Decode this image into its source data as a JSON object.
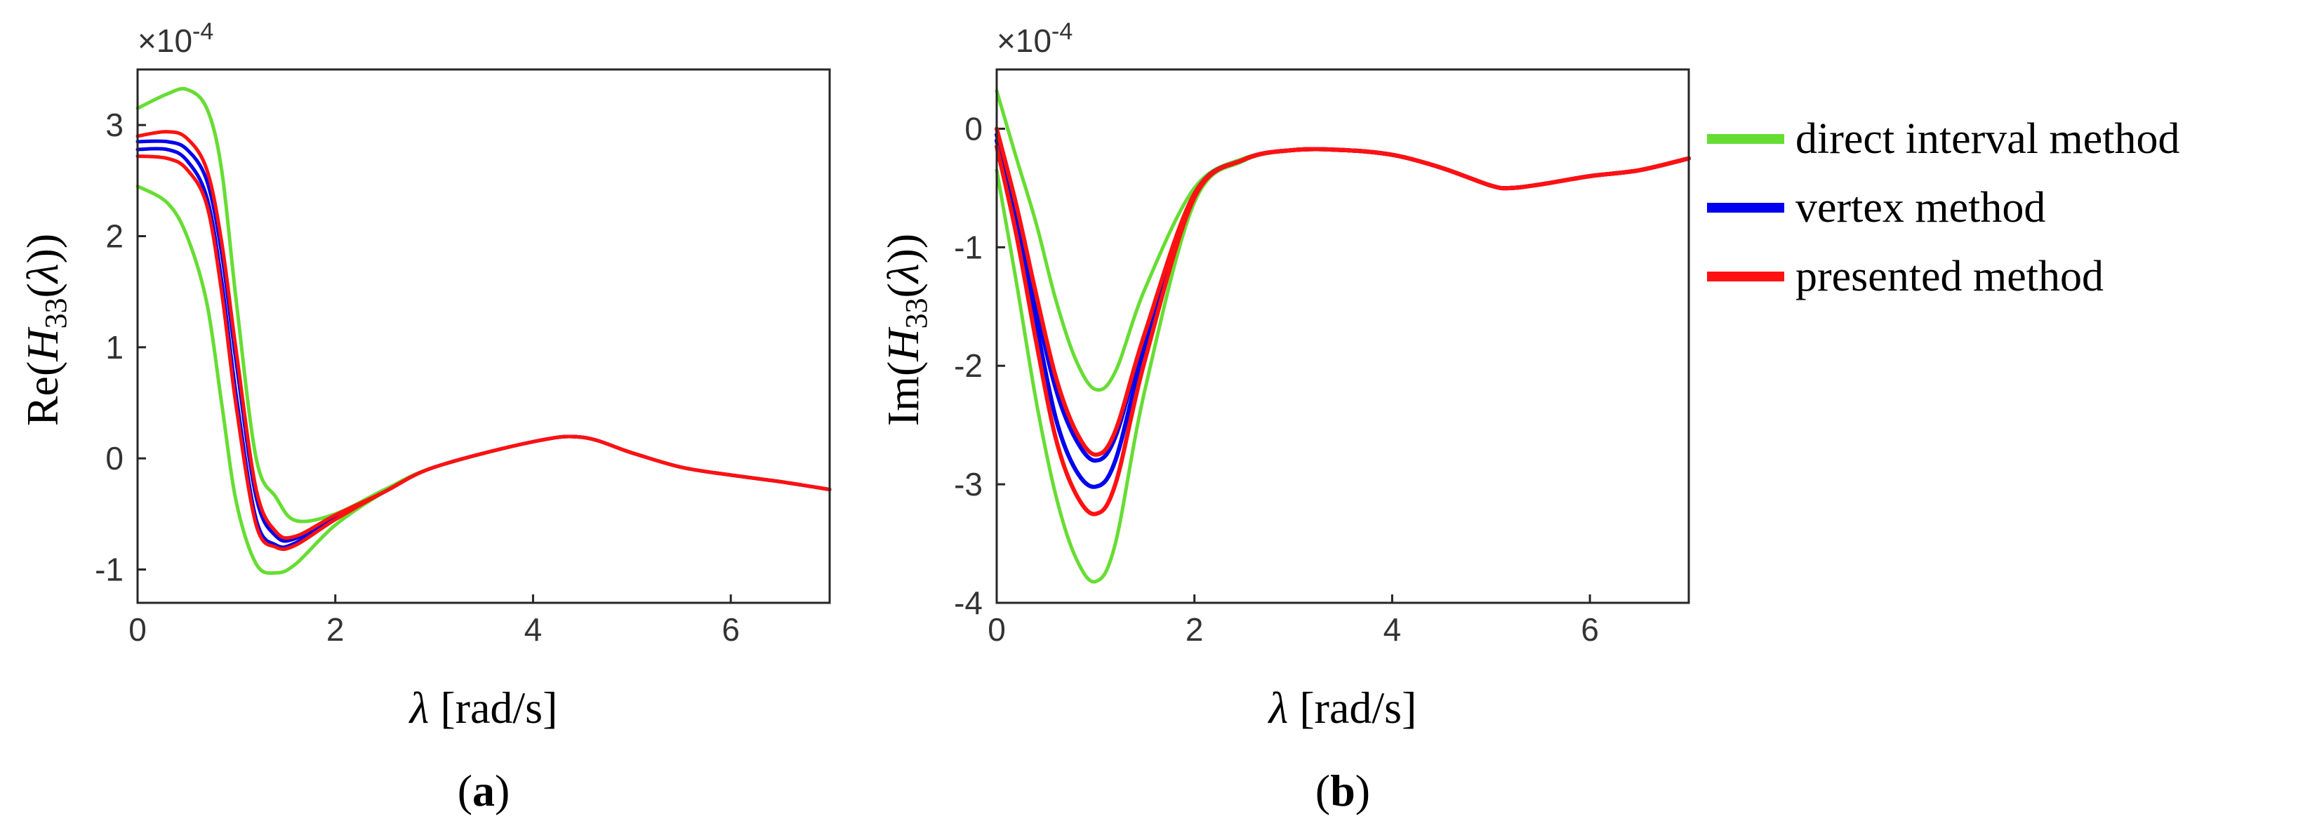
{
  "chart_data": [
    {
      "id": "a",
      "type": "line",
      "panel_label": "a",
      "scale_factor": "×10",
      "scale_exponent": "-4",
      "ylabel": {
        "func": "Re(",
        "var": "H",
        "sub": "33",
        "open": "(",
        "lam": "λ",
        "close": "))"
      },
      "xlabel": {
        "lam": "λ",
        "unit": " [rad/s]"
      },
      "xlim": [
        0,
        7
      ],
      "ylim": [
        -1.3,
        3.5
      ],
      "xticks": [
        0,
        2,
        4,
        6
      ],
      "xtick_labels": [
        "0",
        "2",
        "4",
        "6"
      ],
      "yticks": [
        -1,
        0,
        1,
        2,
        3
      ],
      "ytick_labels": [
        "-1",
        "0",
        "1",
        "2",
        "3"
      ],
      "series": [
        {
          "name": "direct interval method (upper)",
          "color": "#66dd33",
          "width": 5,
          "x": [
            0,
            0.3,
            0.5,
            0.7,
            0.85,
            1.0,
            1.2,
            1.4,
            1.6,
            2.0,
            2.5,
            3.0,
            4.0,
            4.5,
            5.0,
            5.5,
            6.0,
            6.5,
            7.0
          ],
          "y": [
            3.15,
            3.28,
            3.32,
            3.15,
            2.6,
            1.4,
            0.0,
            -0.35,
            -0.56,
            -0.5,
            -0.28,
            -0.08,
            0.15,
            0.19,
            0.05,
            -0.08,
            -0.15,
            -0.21,
            -0.28
          ]
        },
        {
          "name": "direct interval method (lower)",
          "color": "#66dd33",
          "width": 5,
          "x": [
            0,
            0.3,
            0.5,
            0.7,
            0.85,
            1.0,
            1.2,
            1.4,
            1.6,
            2.0,
            2.5,
            3.0,
            4.0,
            4.5,
            5.0,
            5.5,
            6.0,
            6.5,
            7.0
          ],
          "y": [
            2.45,
            2.3,
            2.0,
            1.4,
            0.5,
            -0.4,
            -0.95,
            -1.03,
            -0.95,
            -0.6,
            -0.3,
            -0.08,
            0.15,
            0.19,
            0.05,
            -0.08,
            -0.15,
            -0.21,
            -0.28
          ]
        },
        {
          "name": "vertex method (upper)",
          "color": "#0000ee",
          "width": 5,
          "x": [
            0,
            0.3,
            0.5,
            0.7,
            0.85,
            1.0,
            1.2,
            1.4,
            1.6,
            2.0,
            2.5,
            3.0,
            4.0,
            4.5,
            5.0,
            5.5,
            6.0,
            6.5,
            7.0
          ],
          "y": [
            2.85,
            2.85,
            2.78,
            2.5,
            1.85,
            0.85,
            -0.35,
            -0.7,
            -0.72,
            -0.52,
            -0.3,
            -0.08,
            0.15,
            0.19,
            0.05,
            -0.08,
            -0.15,
            -0.21,
            -0.28
          ]
        },
        {
          "name": "vertex method (lower)",
          "color": "#0000ee",
          "width": 5,
          "x": [
            0,
            0.3,
            0.5,
            0.7,
            0.85,
            1.0,
            1.2,
            1.4,
            1.6,
            2.0,
            2.5,
            3.0,
            4.0,
            4.5,
            5.0,
            5.5,
            6.0,
            6.5,
            7.0
          ],
          "y": [
            2.78,
            2.78,
            2.68,
            2.35,
            1.6,
            0.55,
            -0.55,
            -0.78,
            -0.76,
            -0.54,
            -0.3,
            -0.08,
            0.15,
            0.19,
            0.05,
            -0.08,
            -0.15,
            -0.21,
            -0.28
          ]
        },
        {
          "name": "presented method (upper)",
          "color": "#ff1111",
          "width": 5,
          "x": [
            0,
            0.3,
            0.5,
            0.7,
            0.85,
            1.0,
            1.2,
            1.4,
            1.6,
            2.0,
            2.5,
            3.0,
            4.0,
            4.5,
            5.0,
            5.5,
            6.0,
            6.5,
            7.0
          ],
          "y": [
            2.9,
            2.94,
            2.88,
            2.6,
            1.95,
            0.95,
            -0.28,
            -0.66,
            -0.7,
            -0.51,
            -0.3,
            -0.08,
            0.15,
            0.19,
            0.05,
            -0.08,
            -0.15,
            -0.21,
            -0.28
          ]
        },
        {
          "name": "presented method (lower)",
          "color": "#ff1111",
          "width": 5,
          "x": [
            0,
            0.3,
            0.5,
            0.7,
            0.85,
            1.0,
            1.2,
            1.4,
            1.6,
            2.0,
            2.5,
            3.0,
            4.0,
            4.5,
            5.0,
            5.5,
            6.0,
            6.5,
            7.0
          ],
          "y": [
            2.72,
            2.7,
            2.6,
            2.28,
            1.5,
            0.45,
            -0.6,
            -0.8,
            -0.78,
            -0.55,
            -0.3,
            -0.08,
            0.15,
            0.19,
            0.05,
            -0.08,
            -0.15,
            -0.21,
            -0.28
          ]
        }
      ]
    },
    {
      "id": "b",
      "type": "line",
      "panel_label": "b",
      "scale_factor": "×10",
      "scale_exponent": "-4",
      "ylabel": {
        "func": "Im(",
        "var": "H",
        "sub": "33",
        "open": "(",
        "lam": "λ",
        "close": "))"
      },
      "xlabel": {
        "lam": "λ",
        "unit": " [rad/s]"
      },
      "xlim": [
        0,
        7
      ],
      "ylim": [
        -4,
        0.5
      ],
      "xticks": [
        0,
        2,
        4,
        6
      ],
      "xtick_labels": [
        "0",
        "2",
        "4",
        "6"
      ],
      "yticks": [
        -4,
        -3,
        -2,
        -1,
        0
      ],
      "ytick_labels": [
        "-4",
        "-3",
        "-2",
        "-1",
        "0"
      ],
      "series": [
        {
          "name": "direct interval method (upper)",
          "color": "#66dd33",
          "width": 5,
          "x": [
            0,
            0.2,
            0.4,
            0.6,
            0.8,
            1.0,
            1.2,
            1.5,
            2.0,
            2.5,
            3.0,
            3.5,
            4.0,
            4.5,
            5.0,
            5.2,
            5.5,
            6.0,
            6.5,
            7.0
          ],
          "y": [
            0.32,
            -0.25,
            -0.8,
            -1.45,
            -1.95,
            -2.2,
            -2.05,
            -1.35,
            -0.5,
            -0.25,
            -0.18,
            -0.18,
            -0.22,
            -0.33,
            -0.48,
            -0.5,
            -0.47,
            -0.4,
            -0.35,
            -0.25
          ]
        },
        {
          "name": "direct interval method (lower)",
          "color": "#66dd33",
          "width": 5,
          "x": [
            0,
            0.2,
            0.4,
            0.6,
            0.8,
            1.0,
            1.2,
            1.5,
            2.0,
            2.5,
            3.0,
            3.5,
            4.0,
            4.5,
            5.0,
            5.2,
            5.5,
            6.0,
            6.5,
            7.0
          ],
          "y": [
            -0.35,
            -1.3,
            -2.3,
            -3.1,
            -3.62,
            -3.82,
            -3.5,
            -2.2,
            -0.62,
            -0.27,
            -0.18,
            -0.18,
            -0.22,
            -0.33,
            -0.48,
            -0.5,
            -0.47,
            -0.4,
            -0.35,
            -0.25
          ]
        },
        {
          "name": "vertex method (upper)",
          "color": "#0000ee",
          "width": 6,
          "x": [
            0,
            0.2,
            0.4,
            0.6,
            0.8,
            1.0,
            1.2,
            1.5,
            2.0,
            2.5,
            3.0,
            3.5,
            4.0,
            4.5,
            5.0,
            5.2,
            5.5,
            6.0,
            6.5,
            7.0
          ],
          "y": [
            -0.05,
            -0.7,
            -1.5,
            -2.2,
            -2.62,
            -2.8,
            -2.6,
            -1.75,
            -0.55,
            -0.26,
            -0.18,
            -0.18,
            -0.22,
            -0.33,
            -0.48,
            -0.5,
            -0.47,
            -0.4,
            -0.35,
            -0.25
          ]
        },
        {
          "name": "vertex method (lower)",
          "color": "#0000ee",
          "width": 6,
          "x": [
            0,
            0.2,
            0.4,
            0.6,
            0.8,
            1.0,
            1.2,
            1.5,
            2.0,
            2.5,
            3.0,
            3.5,
            4.0,
            4.5,
            5.0,
            5.2,
            5.5,
            6.0,
            6.5,
            7.0
          ],
          "y": [
            -0.1,
            -0.8,
            -1.65,
            -2.45,
            -2.88,
            -3.02,
            -2.8,
            -1.85,
            -0.57,
            -0.26,
            -0.18,
            -0.18,
            -0.22,
            -0.33,
            -0.48,
            -0.5,
            -0.47,
            -0.4,
            -0.35,
            -0.25
          ]
        },
        {
          "name": "presented method (upper)",
          "color": "#ff1111",
          "width": 6,
          "x": [
            0,
            0.2,
            0.4,
            0.6,
            0.8,
            1.0,
            1.2,
            1.5,
            2.0,
            2.5,
            3.0,
            3.5,
            4.0,
            4.5,
            5.0,
            5.2,
            5.5,
            6.0,
            6.5,
            7.0
          ],
          "y": [
            0.0,
            -0.65,
            -1.4,
            -2.1,
            -2.55,
            -2.75,
            -2.55,
            -1.72,
            -0.55,
            -0.26,
            -0.18,
            -0.18,
            -0.22,
            -0.33,
            -0.48,
            -0.5,
            -0.47,
            -0.4,
            -0.35,
            -0.25
          ]
        },
        {
          "name": "presented method (lower)",
          "color": "#ff1111",
          "width": 6,
          "x": [
            0,
            0.2,
            0.4,
            0.6,
            0.8,
            1.0,
            1.2,
            1.5,
            2.0,
            2.5,
            3.0,
            3.5,
            4.0,
            4.5,
            5.0,
            5.2,
            5.5,
            6.0,
            6.5,
            7.0
          ],
          "y": [
            -0.15,
            -0.9,
            -1.8,
            -2.62,
            -3.08,
            -3.25,
            -3.0,
            -1.95,
            -0.58,
            -0.26,
            -0.18,
            -0.18,
            -0.22,
            -0.33,
            -0.48,
            -0.5,
            -0.47,
            -0.4,
            -0.35,
            -0.25
          ]
        }
      ]
    }
  ],
  "legend": [
    {
      "label": "direct interval method",
      "color": "#66dd33"
    },
    {
      "label": "vertex method",
      "color": "#0000ee"
    },
    {
      "label": "presented method",
      "color": "#ff1111"
    }
  ]
}
